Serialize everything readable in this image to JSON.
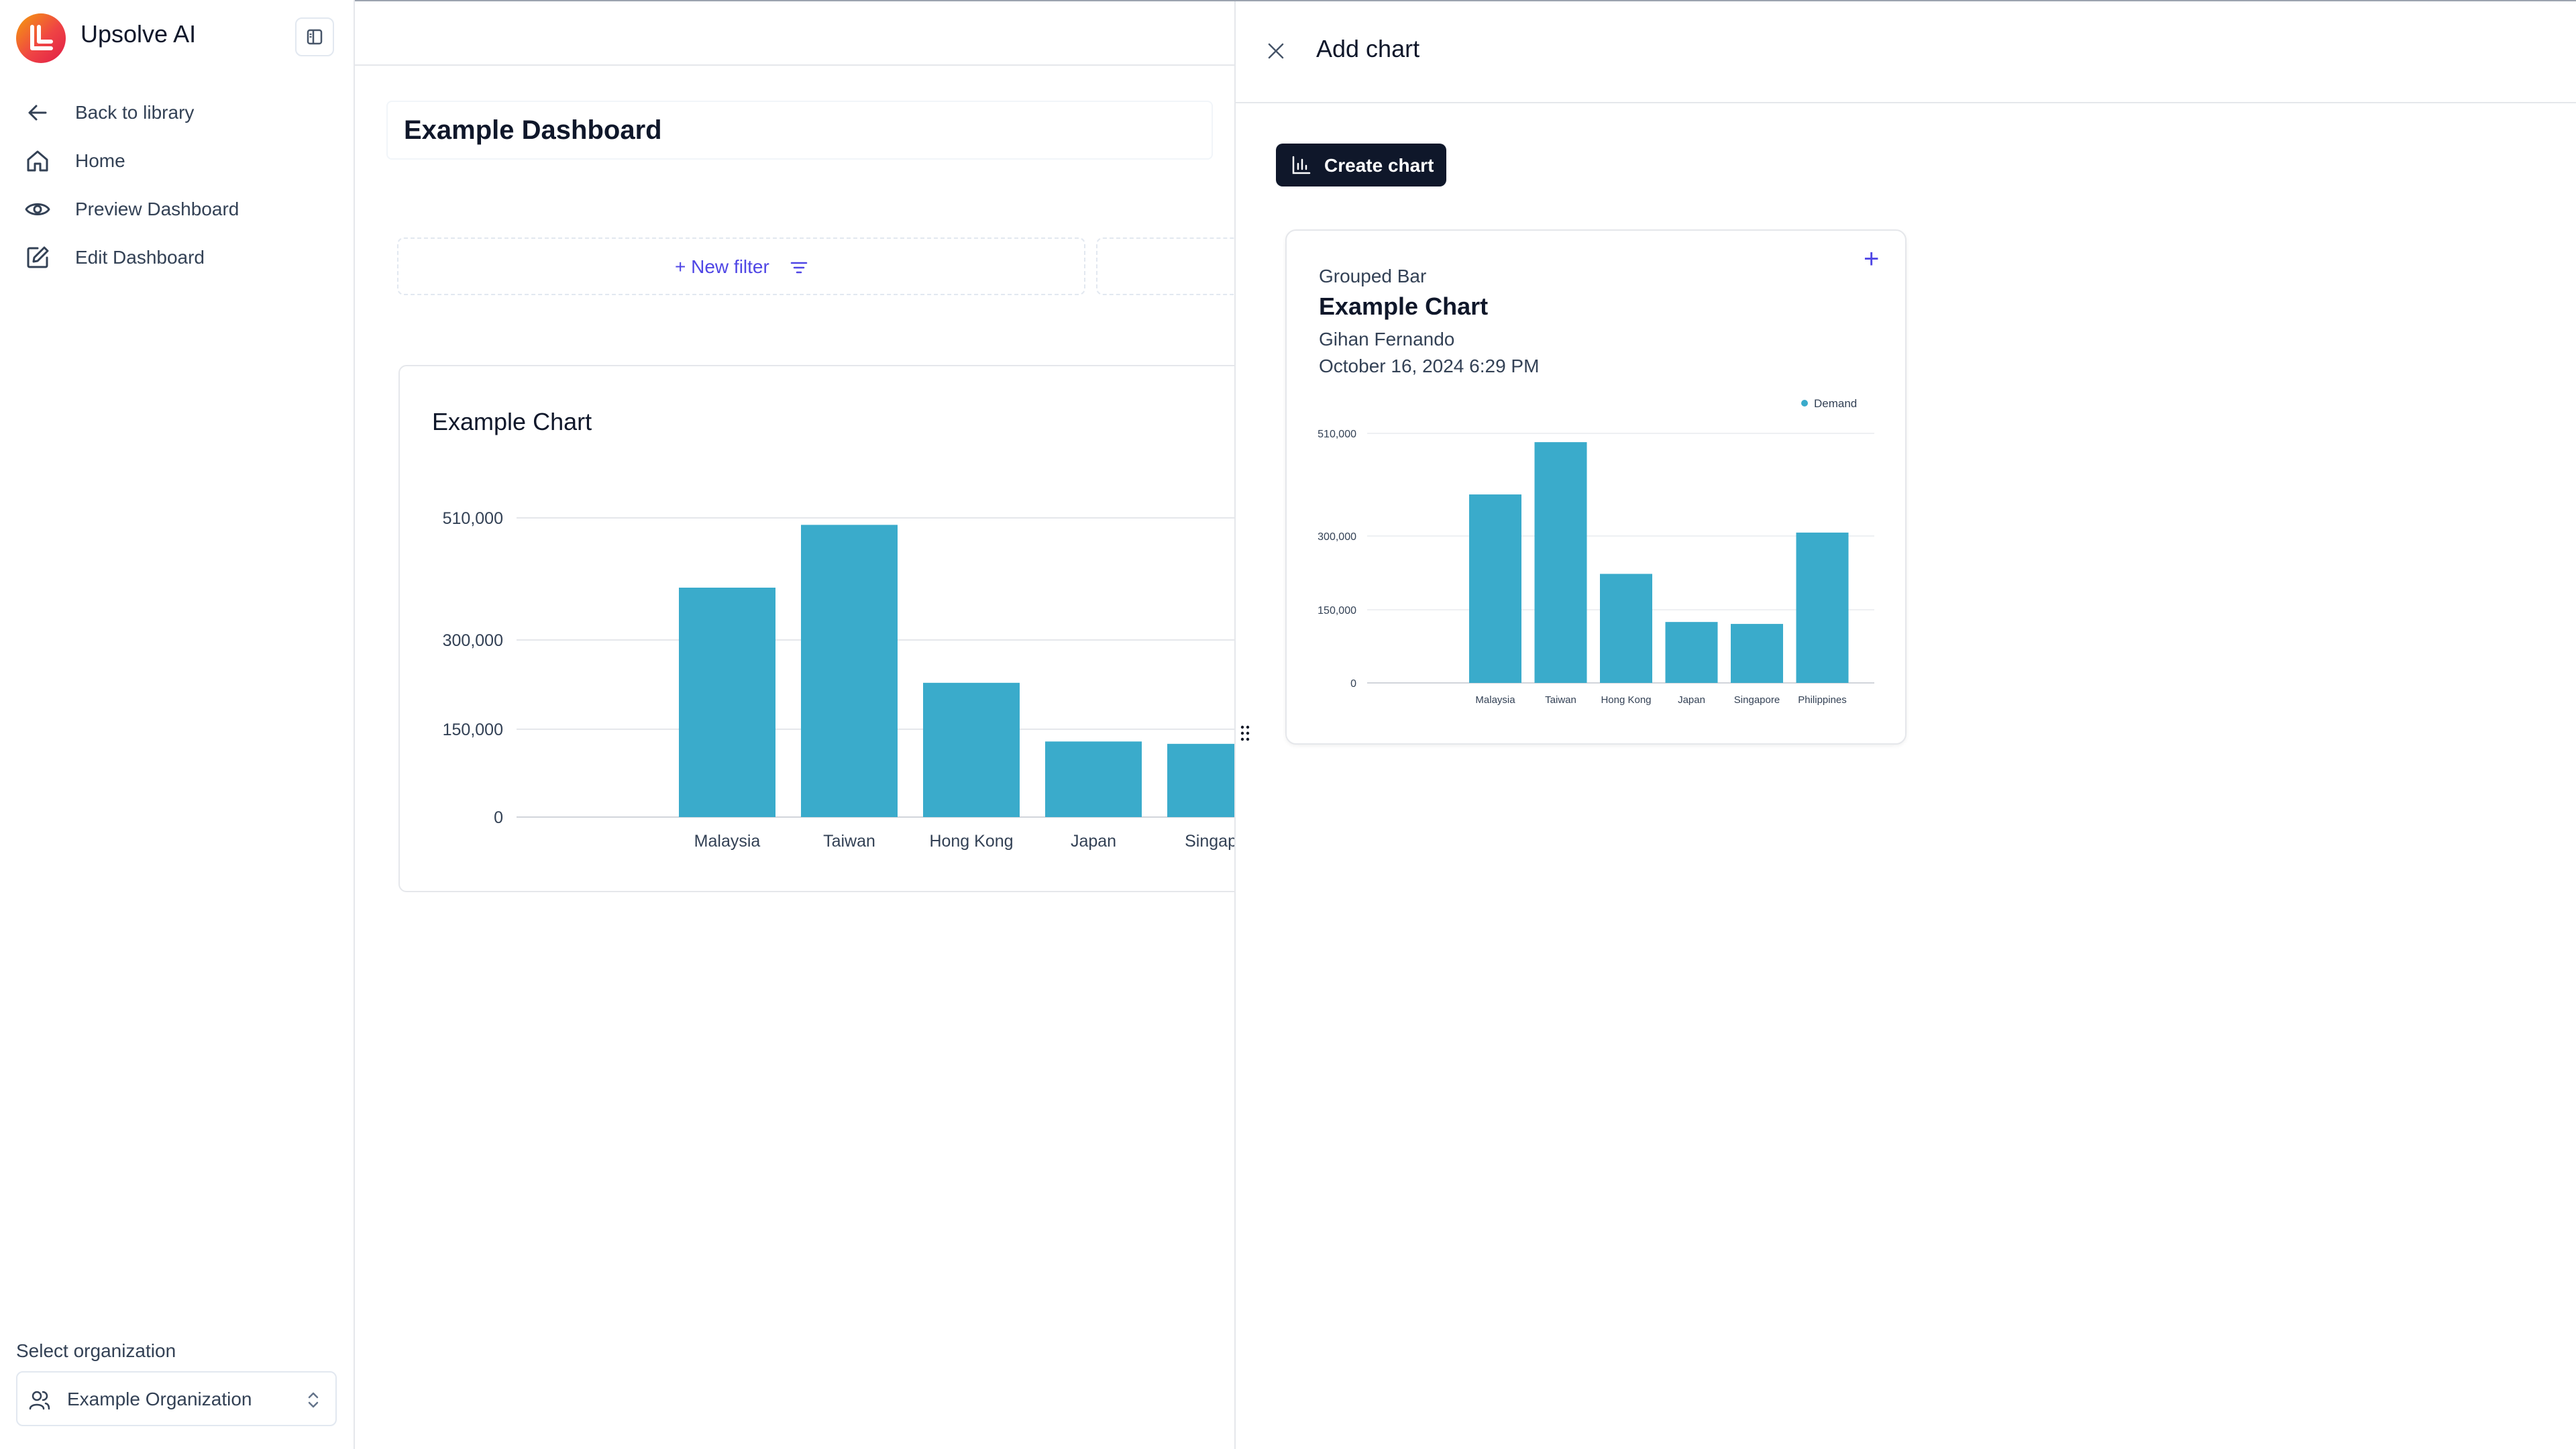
{
  "sidebar": {
    "app_title": "Upsolve AI",
    "items": [
      {
        "label": "Back to library",
        "icon": "arrow-left-icon"
      },
      {
        "label": "Home",
        "icon": "home-icon"
      },
      {
        "label": "Preview Dashboard",
        "icon": "eye-icon"
      },
      {
        "label": "Edit Dashboard",
        "icon": "edit-icon"
      }
    ],
    "org_label": "Select organization",
    "org_value": "Example Organization"
  },
  "main": {
    "dashboard_title": "Example Dashboard",
    "new_filter_label": "+ New filter",
    "chart_title": "Example Chart"
  },
  "drawer": {
    "title": "Add chart",
    "create_button_label": "Create chart",
    "card": {
      "type_label": "Grouped Bar",
      "title": "Example Chart",
      "author": "Gihan Fernando",
      "date": "October 16, 2024 6:29 PM",
      "legend": "Demand",
      "add_symbol": "+"
    }
  },
  "colors": {
    "bar": "#3aabcb",
    "accent": "#4f46e5",
    "primary_button": "#0f172a"
  },
  "chart_data": [
    {
      "type": "bar",
      "categories": [
        "Malaysia",
        "Taiwan",
        "Hong Kong",
        "Japan",
        "Singapore"
      ],
      "tick_labels": [
        "Malaysia",
        "Taiwan",
        "Hong Kong",
        "Japan",
        "Singapo"
      ],
      "values": [
        390000,
        498000,
        228000,
        129000,
        125000
      ],
      "yticks": [
        "0",
        "150,000",
        "300,000",
        "510,000"
      ],
      "ytick_values": [
        0,
        150000,
        300000,
        510000
      ],
      "ylim": [
        0,
        510000
      ],
      "grid": true
    },
    {
      "type": "bar",
      "categories": [
        "Malaysia",
        "Taiwan",
        "Hong Kong",
        "Japan",
        "Singapore",
        "Philippines"
      ],
      "series": [
        {
          "name": "Demand",
          "values": [
            385000,
            492000,
            223000,
            125000,
            121000,
            307000
          ]
        }
      ],
      "yticks": [
        "0",
        "150,000",
        "300,000",
        "510,000"
      ],
      "ytick_values": [
        0,
        150000,
        300000,
        510000
      ],
      "ylim": [
        0,
        510000
      ],
      "legend": "top-right",
      "grid": true
    }
  ]
}
